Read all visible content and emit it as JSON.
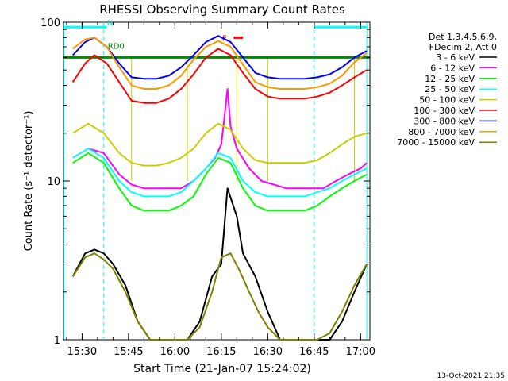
{
  "chart_data": {
    "type": "line",
    "title": "RHESSI Observing Summary Count Rates",
    "xlabel": "Start Time (21-Jan-07 15:24:02)",
    "ylabel": "Count Rate (s⁻¹ detector⁻¹)",
    "yscale": "log",
    "ylim": [
      1,
      100
    ],
    "xlim_minutes_after_start": [
      0,
      99
    ],
    "x_tick_labels": [
      "15:30",
      "15:45",
      "16:00",
      "16:15",
      "16:30",
      "16:45",
      "17:00"
    ],
    "x_tick_minutes_after_start": [
      6,
      21,
      36,
      51,
      66,
      81,
      96
    ],
    "y_tick_labels": [
      "1",
      "10",
      "100"
    ],
    "y_tick_values": [
      1,
      10,
      100
    ],
    "legend_header": [
      "Det 1,3,4,5,6,9,",
      "FDecim 2, Att 0"
    ],
    "legend_position": "right",
    "grid": false,
    "series": [
      {
        "name": "3 - 6 keV",
        "color": "#000000",
        "x": [
          3,
          7,
          10,
          13,
          16,
          20,
          24,
          28,
          32,
          36,
          40,
          44,
          48,
          51,
          53,
          56,
          58,
          62,
          66,
          70,
          74,
          78,
          82,
          86,
          90,
          94,
          98
        ],
        "y": [
          2.5,
          3.5,
          3.7,
          3.5,
          3,
          2.2,
          1.3,
          1,
          1,
          1,
          1,
          1.3,
          2.5,
          3,
          9,
          6,
          3.5,
          2.5,
          1.5,
          1,
          1,
          1,
          1,
          1,
          1.3,
          2,
          3
        ]
      },
      {
        "name": "6 - 12 keV",
        "color": "#ff00ff",
        "x": [
          3,
          8,
          13,
          18,
          22,
          26,
          30,
          34,
          38,
          42,
          46,
          49,
          51,
          52,
          53,
          54,
          56,
          60,
          64,
          68,
          72,
          76,
          80,
          84,
          88,
          92,
          96,
          98
        ],
        "y": [
          14,
          16,
          15,
          11,
          9.5,
          9,
          9,
          9,
          9,
          10,
          12,
          14,
          17,
          25,
          38,
          22,
          16,
          12,
          10,
          9.5,
          9,
          9,
          9,
          9,
          10,
          11,
          12,
          13
        ]
      },
      {
        "name": "12 - 25 keV",
        "color": "#00ff00",
        "x": [
          3,
          8,
          13,
          18,
          22,
          26,
          30,
          34,
          38,
          42,
          46,
          50,
          54,
          58,
          62,
          66,
          70,
          74,
          78,
          82,
          86,
          90,
          94,
          98
        ],
        "y": [
          13,
          15,
          13,
          9,
          7,
          6.5,
          6.5,
          6.5,
          7,
          8,
          11,
          14,
          13,
          9,
          7,
          6.5,
          6.5,
          6.5,
          6.5,
          7,
          8,
          9,
          10,
          11
        ]
      },
      {
        "name": "25 - 50 keV",
        "color": "#00ffff",
        "x": [
          3,
          8,
          13,
          18,
          22,
          26,
          30,
          34,
          38,
          42,
          46,
          50,
          54,
          58,
          62,
          66,
          70,
          74,
          78,
          82,
          86,
          90,
          94,
          98
        ],
        "y": [
          14,
          16,
          14,
          10,
          8.5,
          8,
          8,
          8,
          8.5,
          10,
          12,
          15,
          14,
          10,
          8.5,
          8,
          8,
          8,
          8,
          8.5,
          9,
          10,
          11,
          12
        ]
      },
      {
        "name": "50 - 100 keV",
        "color": "#cccc00",
        "x": [
          3,
          8,
          13,
          18,
          22,
          26,
          30,
          34,
          38,
          42,
          46,
          50,
          54,
          58,
          62,
          66,
          70,
          74,
          78,
          82,
          86,
          90,
          94,
          98
        ],
        "y": [
          20,
          23,
          20,
          15,
          13,
          12.5,
          12.5,
          13,
          14,
          16,
          20,
          23,
          21,
          16,
          13.5,
          13,
          13,
          13,
          13,
          13.5,
          15,
          17,
          19,
          20
        ]
      },
      {
        "name": "100 - 300 keV",
        "color": "#ff0000",
        "x": [
          3,
          7,
          10,
          14,
          18,
          22,
          26,
          30,
          34,
          38,
          42,
          46,
          50,
          54,
          58,
          62,
          66,
          70,
          74,
          78,
          82,
          86,
          90,
          94,
          98
        ],
        "y": [
          42,
          55,
          62,
          55,
          42,
          32,
          31,
          31,
          33,
          38,
          47,
          60,
          68,
          62,
          48,
          38,
          34,
          33,
          33,
          33,
          34,
          36,
          40,
          45,
          50
        ]
      },
      {
        "name": "300 - 800 keV",
        "color": "#0000ff",
        "x": [
          3,
          7,
          10,
          14,
          18,
          22,
          26,
          30,
          34,
          38,
          42,
          46,
          50,
          54,
          58,
          62,
          66,
          70,
          74,
          78,
          82,
          86,
          90,
          94,
          98
        ],
        "y": [
          62,
          75,
          80,
          70,
          55,
          45,
          44,
          44,
          46,
          52,
          62,
          75,
          82,
          75,
          60,
          48,
          45,
          44,
          44,
          44,
          45,
          47,
          52,
          60,
          66
        ]
      },
      {
        "name": "800 - 7000 keV",
        "color": "#ff9900",
        "x": [
          3,
          7,
          10,
          14,
          18,
          22,
          26,
          30,
          34,
          38,
          42,
          46,
          50,
          54,
          58,
          62,
          66,
          70,
          74,
          78,
          82,
          86,
          90,
          94,
          98
        ],
        "y": [
          68,
          78,
          80,
          70,
          52,
          40,
          38,
          38,
          40,
          46,
          58,
          70,
          76,
          70,
          54,
          42,
          39,
          38,
          38,
          38,
          39,
          41,
          46,
          56,
          64
        ]
      },
      {
        "name": "7000 - 15000 keV",
        "color": "#808000",
        "x": [
          3,
          7,
          10,
          13,
          16,
          20,
          24,
          28,
          32,
          36,
          40,
          44,
          48,
          51,
          54,
          57,
          60,
          63,
          66,
          70,
          74,
          78,
          82,
          86,
          90,
          94,
          98
        ],
        "y": [
          2.5,
          3.3,
          3.5,
          3.2,
          2.8,
          2,
          1.3,
          1,
          1,
          1,
          1,
          1.2,
          2,
          3.3,
          3.5,
          2.7,
          2,
          1.5,
          1.2,
          1,
          1,
          1,
          1,
          1.1,
          1.5,
          2.2,
          3
        ]
      }
    ],
    "annotations": [
      {
        "text": "N",
        "color": "#00cccc"
      },
      {
        "text": "RD0",
        "color": "#008800"
      },
      {
        "text": "F",
        "color": "#ff0000"
      }
    ],
    "footer_timestamp": "13-Oct-2021 21:35"
  }
}
